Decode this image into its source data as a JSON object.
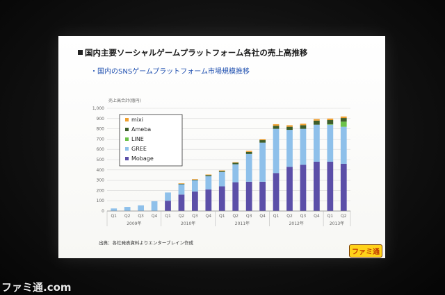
{
  "watermark": "ファミ通.com",
  "slide": {
    "title": "国内主要ソーシャルゲームプラットフォーム各社の売上高推移",
    "subtitle": "・国内のSNSゲームプラットフォーム市場規模推移",
    "source_note": "出典：各社発表資料よりエンターブレイン作成",
    "badge": "ファミ通"
  },
  "chart_data": {
    "type": "bar",
    "stacked": true,
    "ylabel": "売上高合計(億円)",
    "ylim": [
      0,
      1000
    ],
    "yticks": [
      "0",
      "100",
      "200",
      "300",
      "400",
      "500",
      "600",
      "700",
      "800",
      "900",
      "1,000"
    ],
    "grid": true,
    "legend_position": "top-left",
    "categories": [
      "Q1",
      "Q2",
      "Q3",
      "Q4",
      "Q1",
      "Q2",
      "Q3",
      "Q4",
      "Q1",
      "Q2",
      "Q3",
      "Q4",
      "Q1",
      "Q2",
      "Q3",
      "Q4",
      "Q1",
      "Q2"
    ],
    "year_groups": [
      {
        "label": "2009年",
        "span": 4
      },
      {
        "label": "2010年",
        "span": 4
      },
      {
        "label": "2011年",
        "span": 4
      },
      {
        "label": "2012年",
        "span": 4
      },
      {
        "label": "2013年",
        "span": 2
      }
    ],
    "series": [
      {
        "name": "Mobage",
        "color": "#5b4fa8",
        "values": [
          0,
          0,
          0,
          0,
          100,
          160,
          190,
          210,
          240,
          280,
          285,
          285,
          370,
          430,
          450,
          480,
          480,
          460
        ]
      },
      {
        "name": "GREE",
        "color": "#8ec0ea",
        "values": [
          25,
          40,
          55,
          95,
          80,
          100,
          110,
          130,
          140,
          175,
          270,
          380,
          430,
          360,
          350,
          360,
          360,
          360
        ]
      },
      {
        "name": "LINE",
        "color": "#6cc24a",
        "values": [
          0,
          0,
          0,
          0,
          0,
          0,
          0,
          0,
          0,
          0,
          0,
          0,
          0,
          0,
          0,
          0,
          5,
          50
        ]
      },
      {
        "name": "Ameba",
        "color": "#3d5e2a",
        "values": [
          0,
          0,
          0,
          0,
          0,
          5,
          5,
          10,
          10,
          15,
          20,
          25,
          30,
          30,
          35,
          40,
          40,
          35
        ]
      },
      {
        "name": "mixi",
        "color": "#f0a030",
        "values": [
          0,
          0,
          0,
          0,
          0,
          5,
          5,
          5,
          5,
          5,
          10,
          10,
          15,
          15,
          15,
          15,
          15,
          15
        ]
      }
    ]
  }
}
